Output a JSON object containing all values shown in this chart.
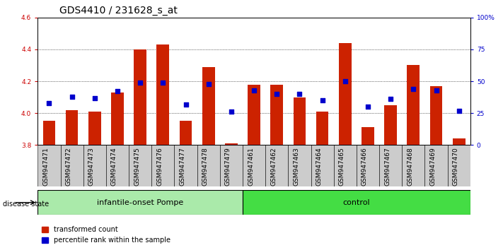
{
  "title": "GDS4410 / 231628_s_at",
  "samples": [
    "GSM947471",
    "GSM947472",
    "GSM947473",
    "GSM947474",
    "GSM947475",
    "GSM947476",
    "GSM947477",
    "GSM947478",
    "GSM947479",
    "GSM947461",
    "GSM947462",
    "GSM947463",
    "GSM947464",
    "GSM947465",
    "GSM947466",
    "GSM947467",
    "GSM947468",
    "GSM947469",
    "GSM947470"
  ],
  "bar_values": [
    3.95,
    4.02,
    4.01,
    4.13,
    4.4,
    4.43,
    3.95,
    4.29,
    3.81,
    4.18,
    4.18,
    4.1,
    4.01,
    4.44,
    3.91,
    4.05,
    4.3,
    4.17,
    3.84
  ],
  "dot_values_pct": [
    33,
    38,
    37,
    42,
    49,
    49,
    32,
    48,
    26,
    43,
    40,
    40,
    35,
    50,
    30,
    36,
    44,
    43,
    27
  ],
  "groups": [
    {
      "label": "infantile-onset Pompe",
      "start": 0,
      "end": 9,
      "color": "#aaeaaa"
    },
    {
      "label": "control",
      "start": 9,
      "end": 19,
      "color": "#44dd44"
    }
  ],
  "ymin": 3.8,
  "ymax": 4.6,
  "bar_color": "#CC2200",
  "dot_color": "#0000CC",
  "bar_width": 0.55,
  "dot_size": 25,
  "title_fontsize": 10,
  "tick_fontsize": 6.5,
  "label_fontsize": 8,
  "background_color": "#ffffff",
  "plot_bg_color": "#ffffff",
  "xtick_bg_color": "#cccccc",
  "grid_color": "#000000",
  "ytick_left_color": "#cc0000",
  "ytick_right_color": "#0000cc"
}
